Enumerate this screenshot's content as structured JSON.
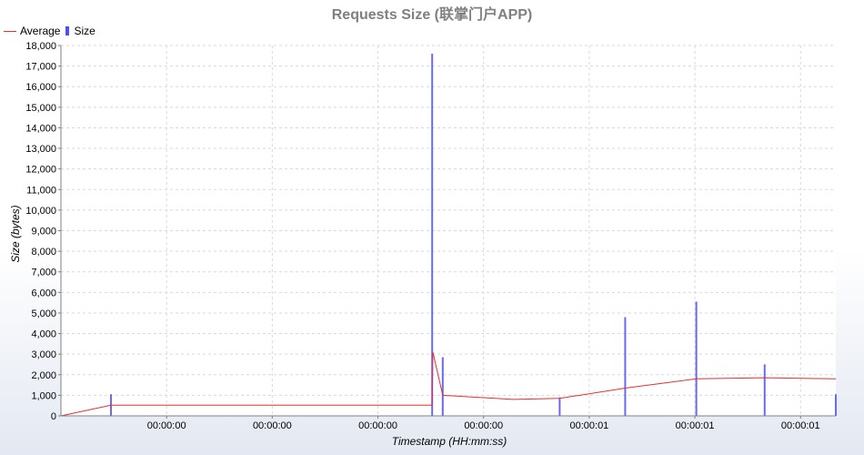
{
  "chart_data": {
    "type": "bar+line",
    "title": "Requests Size (联掌门户APP)",
    "xlabel": "Timestamp (HH:mm:ss)",
    "ylabel": "Size (bytes)",
    "ylim": [
      0,
      18000
    ],
    "y_ticks": [
      0,
      1000,
      2000,
      3000,
      4000,
      5000,
      6000,
      7000,
      8000,
      9000,
      10000,
      11000,
      12000,
      13000,
      14000,
      15000,
      16000,
      17000,
      18000
    ],
    "y_tick_labels": [
      "0",
      "1,000",
      "2,000",
      "3,000",
      "4,000",
      "5,000",
      "6,000",
      "7,000",
      "8,000",
      "9,000",
      "10,000",
      "11,000",
      "12,000",
      "13,000",
      "14,000",
      "15,000",
      "16,000",
      "17,000",
      "18,000"
    ],
    "xlim": [
      0,
      1.1
    ],
    "x_ticks": [
      0.15,
      0.3,
      0.45,
      0.6,
      0.75,
      0.9,
      1.05
    ],
    "x_tick_labels": [
      "00:00:00",
      "00:00:00",
      "00:00:00",
      "00:00:00",
      "00:00:01",
      "00:00:01",
      "00:00:01"
    ],
    "grid": true,
    "legend_position": "top-left",
    "series": [
      {
        "name": "Average",
        "kind": "line",
        "color": "#e8302d",
        "x": [
          0,
          0.071,
          0.527,
          0.528,
          0.542,
          0.642,
          0.708,
          0.801,
          0.902,
          0.999,
          1.1
        ],
        "y": [
          0,
          520,
          520,
          3100,
          1000,
          800,
          850,
          1350,
          1800,
          1850,
          1800
        ]
      },
      {
        "name": "Size",
        "kind": "bar",
        "color": "#5050ee",
        "x": [
          0.071,
          0.527,
          0.542,
          0.708,
          0.801,
          0.902,
          0.999,
          1.1
        ],
        "y": [
          1050,
          17600,
          2850,
          900,
          4800,
          5550,
          2500,
          1050
        ]
      }
    ]
  }
}
